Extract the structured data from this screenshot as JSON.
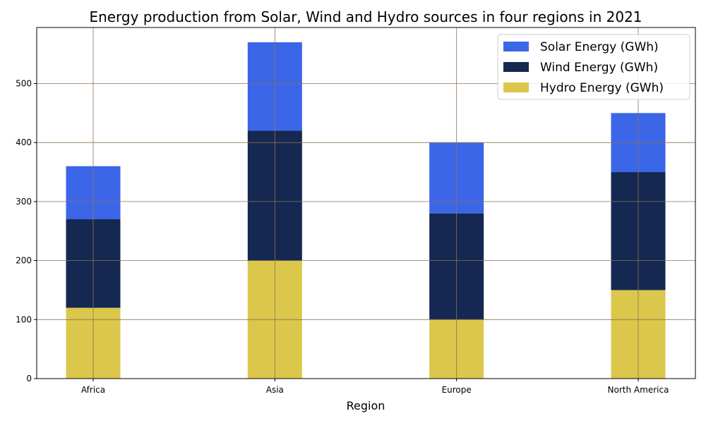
{
  "chart_data": {
    "type": "bar",
    "stacked": true,
    "title": "Energy production from Solar, Wind and Hydro sources in four regions in 2021",
    "xlabel": "Region",
    "ylabel": "",
    "categories": [
      "Africa",
      "Asia",
      "Europe",
      "North America"
    ],
    "ylim": [
      0,
      595
    ],
    "yticks": [
      0,
      100,
      200,
      300,
      400,
      500
    ],
    "grid": true,
    "grid_color": "#8b7355",
    "legend_position": "top-right",
    "series": [
      {
        "name": "Hydro Energy (GWh)",
        "color": "#dbc74b",
        "values": [
          120,
          200,
          100,
          150
        ]
      },
      {
        "name": "Wind Energy (GWh)",
        "color": "#152852",
        "values": [
          150,
          220,
          180,
          200
        ]
      },
      {
        "name": "Solar Energy (GWh)",
        "color": "#3c66e8",
        "values": [
          90,
          150,
          120,
          100
        ]
      }
    ],
    "legend_order": [
      "Solar Energy (GWh)",
      "Wind Energy (GWh)",
      "Hydro Energy (GWh)"
    ]
  }
}
